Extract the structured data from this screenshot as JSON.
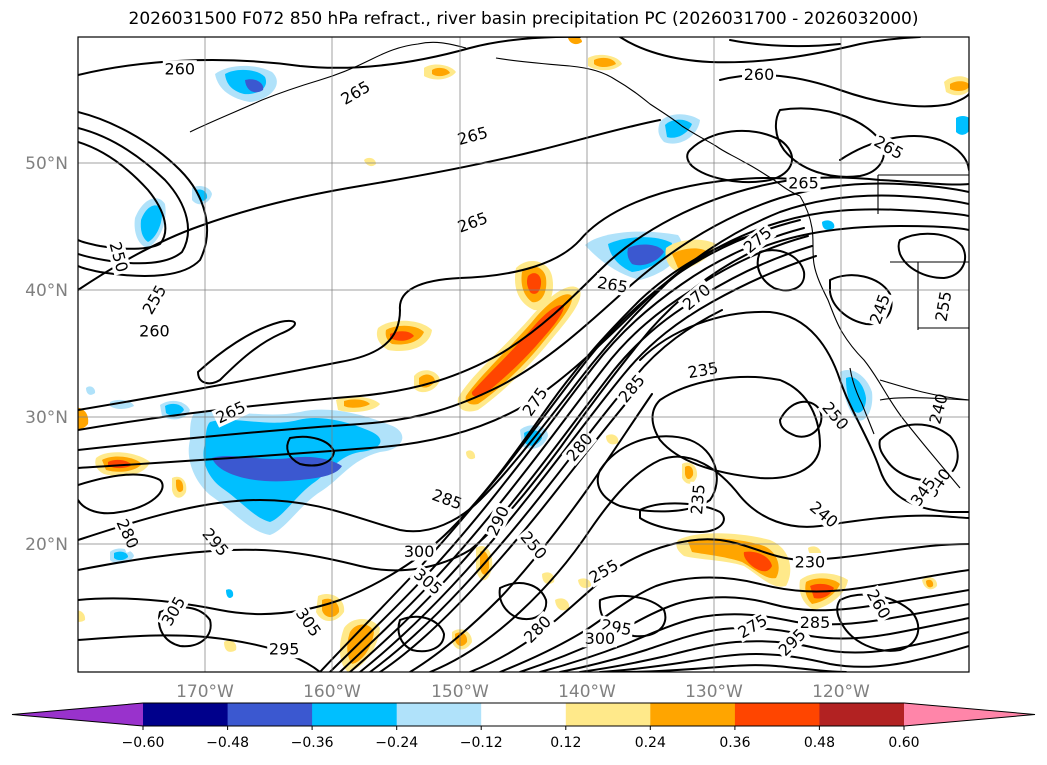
{
  "title": "2026031500 F072 850 hPa refract., river basin precipitation PC (2026031700 - 2026032000)",
  "map": {
    "projection": "mercator",
    "lon_range": [
      -180,
      -110
    ],
    "lat_range": [
      10,
      60
    ],
    "gridlines": true,
    "lat_labels": [
      "50°N",
      "40°N",
      "30°N",
      "20°N"
    ],
    "lat_values": [
      50,
      40,
      30,
      20
    ],
    "lon_labels": [
      "170°W",
      "160°W",
      "150°W",
      "140°W",
      "130°W",
      "120°W"
    ],
    "lon_values": [
      -170,
      -160,
      -150,
      -140,
      -130,
      -120
    ]
  },
  "contour_labels": [
    {
      "text": "260",
      "lon": -172,
      "lat": 58.3,
      "rot": 0
    },
    {
      "text": "265",
      "lon": -158.2,
      "lat": 57.0,
      "rot": -30
    },
    {
      "text": "265",
      "lon": -149.0,
      "lat": 54.5,
      "rot": -15
    },
    {
      "text": "260",
      "lon": -126.5,
      "lat": 58.0,
      "rot": 0
    },
    {
      "text": "265",
      "lon": -116.3,
      "lat": 53.8,
      "rot": 30
    },
    {
      "text": "265",
      "lon": -123.0,
      "lat": 51.6,
      "rot": 0
    },
    {
      "text": "265",
      "lon": -149.0,
      "lat": 49.0,
      "rot": -20
    },
    {
      "text": "250",
      "lon": -176.8,
      "lat": 46.6,
      "rot": 75
    },
    {
      "text": "255",
      "lon": -174.0,
      "lat": 43.5,
      "rot": -60
    },
    {
      "text": "260",
      "lon": -174.0,
      "lat": 41.1,
      "rot": 0
    },
    {
      "text": "265",
      "lon": -138.0,
      "lat": 44.6,
      "rot": 10
    },
    {
      "text": "270",
      "lon": -131.4,
      "lat": 43.7,
      "rot": -40
    },
    {
      "text": "275",
      "lon": -126.6,
      "lat": 47.8,
      "rot": -40
    },
    {
      "text": "245",
      "lon": -117.0,
      "lat": 42.8,
      "rot": -70
    },
    {
      "text": "255",
      "lon": -112.0,
      "lat": 43.0,
      "rot": -80
    },
    {
      "text": "235",
      "lon": -130.9,
      "lat": 38.0,
      "rot": -10
    },
    {
      "text": "250",
      "lon": -120.5,
      "lat": 34.2,
      "rot": 50
    },
    {
      "text": "240",
      "lon": -112.4,
      "lat": 34.8,
      "rot": -75
    },
    {
      "text": "265",
      "lon": -168.0,
      "lat": 34.5,
      "rot": -25
    },
    {
      "text": "275",
      "lon": -144.1,
      "lat": 35.4,
      "rot": -55
    },
    {
      "text": "285",
      "lon": -136.5,
      "lat": 36.5,
      "rot": -50
    },
    {
      "text": "280",
      "lon": -140.6,
      "lat": 31.5,
      "rot": -50
    },
    {
      "text": "285",
      "lon": -151.0,
      "lat": 26.8,
      "rot": 20
    },
    {
      "text": "290",
      "lon": -147.0,
      "lat": 24.8,
      "rot": -65
    },
    {
      "text": "280",
      "lon": -176.1,
      "lat": 23.6,
      "rot": 65
    },
    {
      "text": "295",
      "lon": -169.2,
      "lat": 22.8,
      "rot": 50
    },
    {
      "text": "300",
      "lon": -153.2,
      "lat": 21.9,
      "rot": 0
    },
    {
      "text": "305",
      "lon": -152.5,
      "lat": 19.0,
      "rot": 40
    },
    {
      "text": "250",
      "lon": -144.2,
      "lat": 22.5,
      "rot": 50
    },
    {
      "text": "255",
      "lon": -138.7,
      "lat": 20.0,
      "rot": -30
    },
    {
      "text": "305",
      "lon": -172.5,
      "lat": 16.1,
      "rot": -60
    },
    {
      "text": "305",
      "lon": -161.9,
      "lat": 15.0,
      "rot": 55
    },
    {
      "text": "295",
      "lon": -163.8,
      "lat": 12.3,
      "rot": 0
    },
    {
      "text": "280",
      "lon": -143.9,
      "lat": 14.3,
      "rot": -45
    },
    {
      "text": "295",
      "lon": -137.7,
      "lat": 14.5,
      "rot": 10
    },
    {
      "text": "300",
      "lon": -139.0,
      "lat": 13.4,
      "rot": 0
    },
    {
      "text": "230",
      "lon": -122.5,
      "lat": 20.9,
      "rot": 0
    },
    {
      "text": "235",
      "lon": -131.3,
      "lat": 26.8,
      "rot": -85
    },
    {
      "text": "240",
      "lon": -121.4,
      "lat": 25.4,
      "rot": 40
    },
    {
      "text": "260",
      "lon": -117.1,
      "lat": 16.8,
      "rot": 60
    },
    {
      "text": "275",
      "lon": -127.0,
      "lat": 14.6,
      "rot": -30
    },
    {
      "text": "295",
      "lon": -123.9,
      "lat": 13.0,
      "rot": -45
    },
    {
      "text": "285",
      "lon": -122.1,
      "lat": 15.0,
      "rot": 0
    },
    {
      "text": "340",
      "lon": -112.4,
      "lat": 28.3,
      "rot": -55
    },
    {
      "text": "345",
      "lon": -113.6,
      "lat": 27.5,
      "rot": -55
    }
  ],
  "colorbar": {
    "ticks": [
      "−0.60",
      "−0.48",
      "−0.36",
      "−0.24",
      "−0.12",
      "0.12",
      "0.24",
      "0.36",
      "0.48",
      "0.60"
    ],
    "levels": [
      -0.6,
      -0.48,
      -0.36,
      -0.24,
      -0.12,
      0.12,
      0.24,
      0.36,
      0.48,
      0.6
    ],
    "colors": [
      "#9932cc",
      "#8a2be2",
      "#00008b",
      "#3b58d0",
      "#00bfff",
      "#b0e2fa",
      "#ffffff",
      "#ffe98a",
      "#ffa500",
      "#ff4500",
      "#b22222",
      "#ff85a9"
    ],
    "extend": "both"
  },
  "shading_colors": {
    "neg_light": "#b0e2fa",
    "neg_mid": "#00bfff",
    "neg_strong": "#3b58d0",
    "pos_light": "#ffe98a",
    "pos_mid": "#ffa500",
    "pos_strong": "#ff4500",
    "pos_extreme": "#b22222"
  }
}
